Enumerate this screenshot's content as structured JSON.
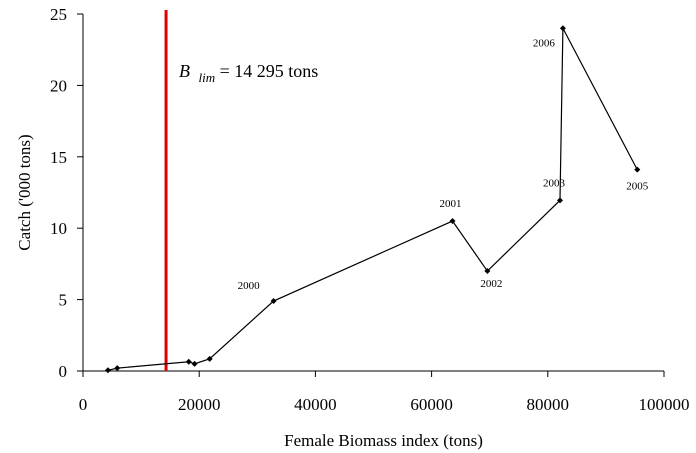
{
  "chart_data": {
    "type": "line",
    "xlabel": "Female Biomass index (tons)",
    "ylabel": "Catch ('000 tons)",
    "xlim": [
      0,
      100000
    ],
    "ylim": [
      0,
      25
    ],
    "x_ticks": [
      0,
      20000,
      40000,
      60000,
      80000,
      100000
    ],
    "x_tick_labels": [
      "0",
      "20000",
      "40000",
      "60000",
      "80000",
      "100000"
    ],
    "y_ticks": [
      0,
      5,
      10,
      15,
      20,
      25
    ],
    "y_tick_labels": [
      "0",
      "5",
      "10",
      "15",
      "20",
      "25"
    ],
    "grid": false,
    "series": [
      {
        "color": "#000000",
        "points": [
          {
            "x": 4300,
            "y": 0.05,
            "label": ""
          },
          {
            "x": 5900,
            "y": 0.2,
            "label": ""
          },
          {
            "x": 18200,
            "y": 0.65,
            "label": ""
          },
          {
            "x": 19200,
            "y": 0.5,
            "label": ""
          },
          {
            "x": 21800,
            "y": 0.85,
            "label": ""
          },
          {
            "x": 32800,
            "y": 4.9,
            "label": "2000"
          },
          {
            "x": 63600,
            "y": 10.5,
            "label": "2001"
          },
          {
            "x": 69600,
            "y": 7.0,
            "label": "2002"
          },
          {
            "x": 82100,
            "y": 11.95,
            "label": "2003"
          },
          {
            "x": 82600,
            "y": 24.0,
            "label": "2006"
          },
          {
            "x": 95400,
            "y": 14.1,
            "label": "2005"
          }
        ]
      }
    ],
    "reference_line": {
      "x": 14295,
      "color": "#e00000",
      "label_symbol": "B",
      "label_subscript": "lim",
      "label_value": " = 14 295 tons"
    }
  }
}
